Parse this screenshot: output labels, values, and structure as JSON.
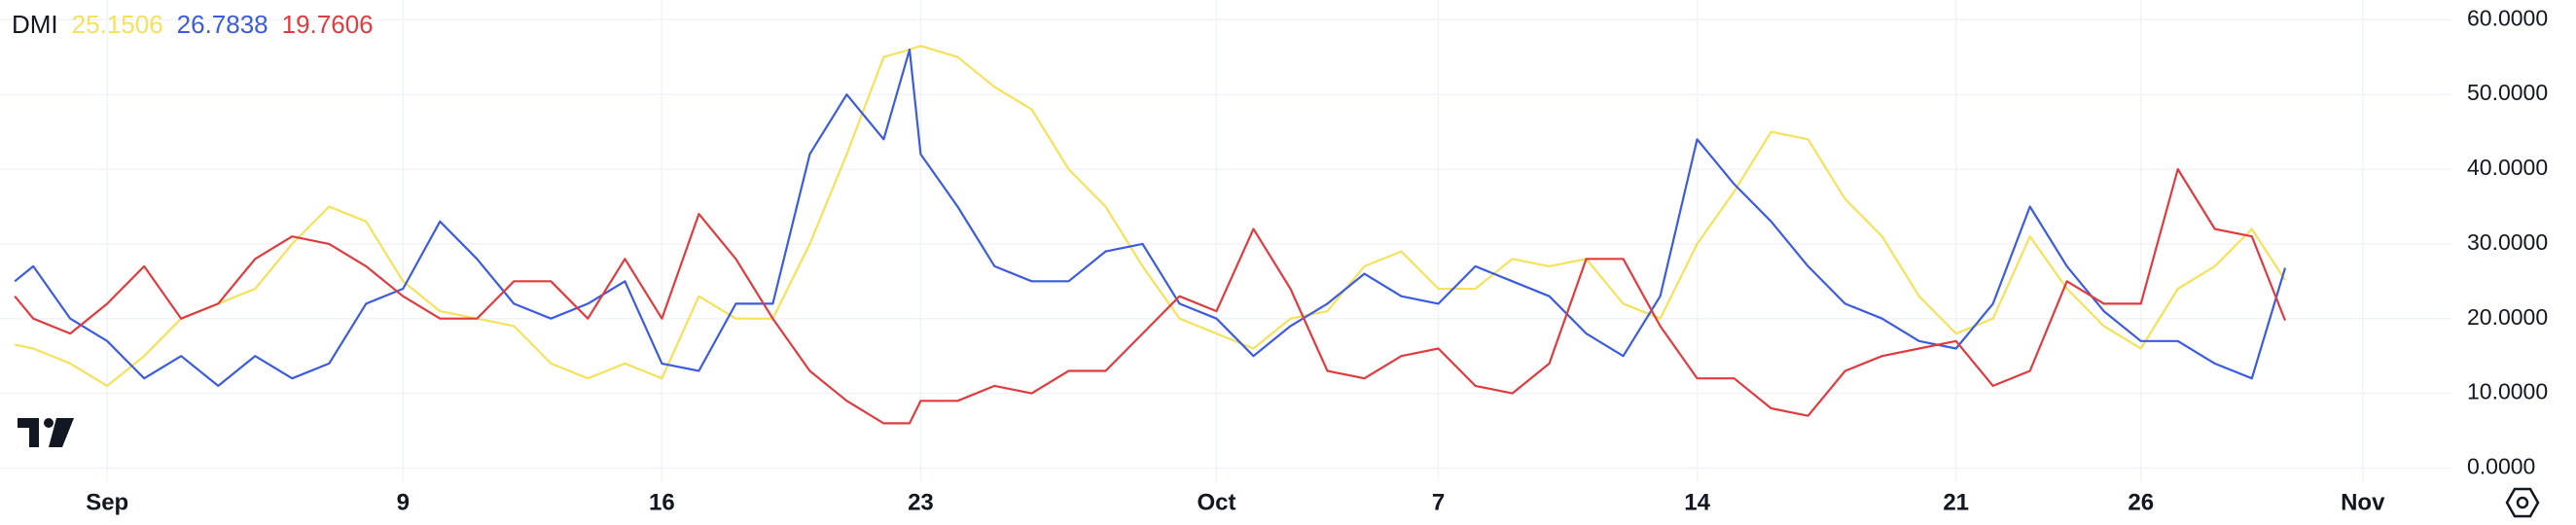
{
  "chart_data": {
    "type": "line",
    "title": "DMI",
    "x": [
      -2.5,
      -2,
      -1,
      0,
      1,
      2,
      3,
      4,
      5,
      6,
      7,
      8,
      9,
      10,
      11,
      12,
      13,
      14,
      15,
      16,
      17,
      18,
      19,
      20,
      21,
      21.7,
      22,
      23,
      24,
      25,
      26,
      27,
      28,
      29,
      30,
      31,
      32,
      33,
      34,
      35,
      36,
      37,
      38,
      39,
      40,
      41,
      42,
      43,
      44,
      45,
      46,
      47,
      48,
      49,
      50,
      51,
      52,
      53,
      54,
      55,
      56,
      57,
      58,
      58.9
    ],
    "xlim": [
      -2.9,
      63.4
    ],
    "xticks": [
      {
        "value": 0,
        "label": "Sep"
      },
      {
        "value": 8,
        "label": "9"
      },
      {
        "value": 15,
        "label": "16"
      },
      {
        "value": 22,
        "label": "23"
      },
      {
        "value": 30,
        "label": "Oct"
      },
      {
        "value": 36,
        "label": "7"
      },
      {
        "value": 43,
        "label": "14"
      },
      {
        "value": 50,
        "label": "21"
      },
      {
        "value": 55,
        "label": "26"
      },
      {
        "value": 61,
        "label": "Nov"
      }
    ],
    "ylim": [
      -1.76,
      62.64
    ],
    "yticks": [
      {
        "value": 0,
        "label": "0.0000"
      },
      {
        "value": 10,
        "label": "10.0000"
      },
      {
        "value": 20,
        "label": "20.0000"
      },
      {
        "value": 30,
        "label": "30.0000"
      },
      {
        "value": 40,
        "label": "40.0000"
      },
      {
        "value": 50,
        "label": "50.0000"
      },
      {
        "value": 60,
        "label": "60.0000"
      }
    ],
    "grid": true,
    "series": [
      {
        "color": "#f5e15a",
        "values": [
          16.5,
          16,
          14,
          11,
          15,
          20,
          22,
          24,
          30,
          35,
          33,
          25,
          21,
          20,
          19,
          14,
          12,
          14,
          12,
          23,
          20,
          20,
          30,
          42,
          55,
          56,
          56.5,
          55,
          51,
          48,
          40,
          35,
          27,
          20,
          18,
          16,
          20,
          21,
          27,
          29,
          24,
          24,
          28,
          27,
          28,
          22,
          20,
          30,
          37,
          45,
          44,
          36,
          31,
          23,
          18,
          20,
          31,
          24,
          19,
          16,
          24,
          27,
          32,
          25.1506
        ]
      },
      {
        "color": "#3b5be0",
        "values": [
          25,
          27,
          20,
          17,
          12,
          15,
          11,
          15,
          12,
          14,
          22,
          24,
          33,
          28,
          22,
          20,
          22,
          25,
          14,
          13,
          22,
          22,
          42,
          50,
          44,
          56,
          42,
          35,
          27,
          25,
          25,
          29,
          30,
          22,
          20,
          15,
          19,
          22,
          26,
          23,
          22,
          27,
          25,
          23,
          18,
          15,
          23,
          44,
          38,
          33,
          27,
          22,
          20,
          17,
          16,
          22,
          35,
          27,
          21,
          17,
          17,
          14,
          12,
          26.7838
        ]
      },
      {
        "color": "#e03b3f",
        "values": [
          23,
          20,
          18,
          22,
          27,
          20,
          22,
          28,
          31,
          30,
          27,
          23,
          20,
          20,
          25,
          25,
          20,
          28,
          20,
          34,
          28,
          20,
          13,
          9,
          6,
          6,
          9,
          9,
          11,
          10,
          13,
          13,
          18,
          23,
          21,
          32,
          24,
          13,
          12,
          15,
          16,
          11,
          10,
          14,
          28,
          28,
          19,
          12,
          12,
          8,
          7,
          13,
          15,
          16,
          17,
          11,
          13,
          25,
          22,
          22,
          40,
          32,
          31,
          19.7606
        ]
      }
    ]
  }
}
